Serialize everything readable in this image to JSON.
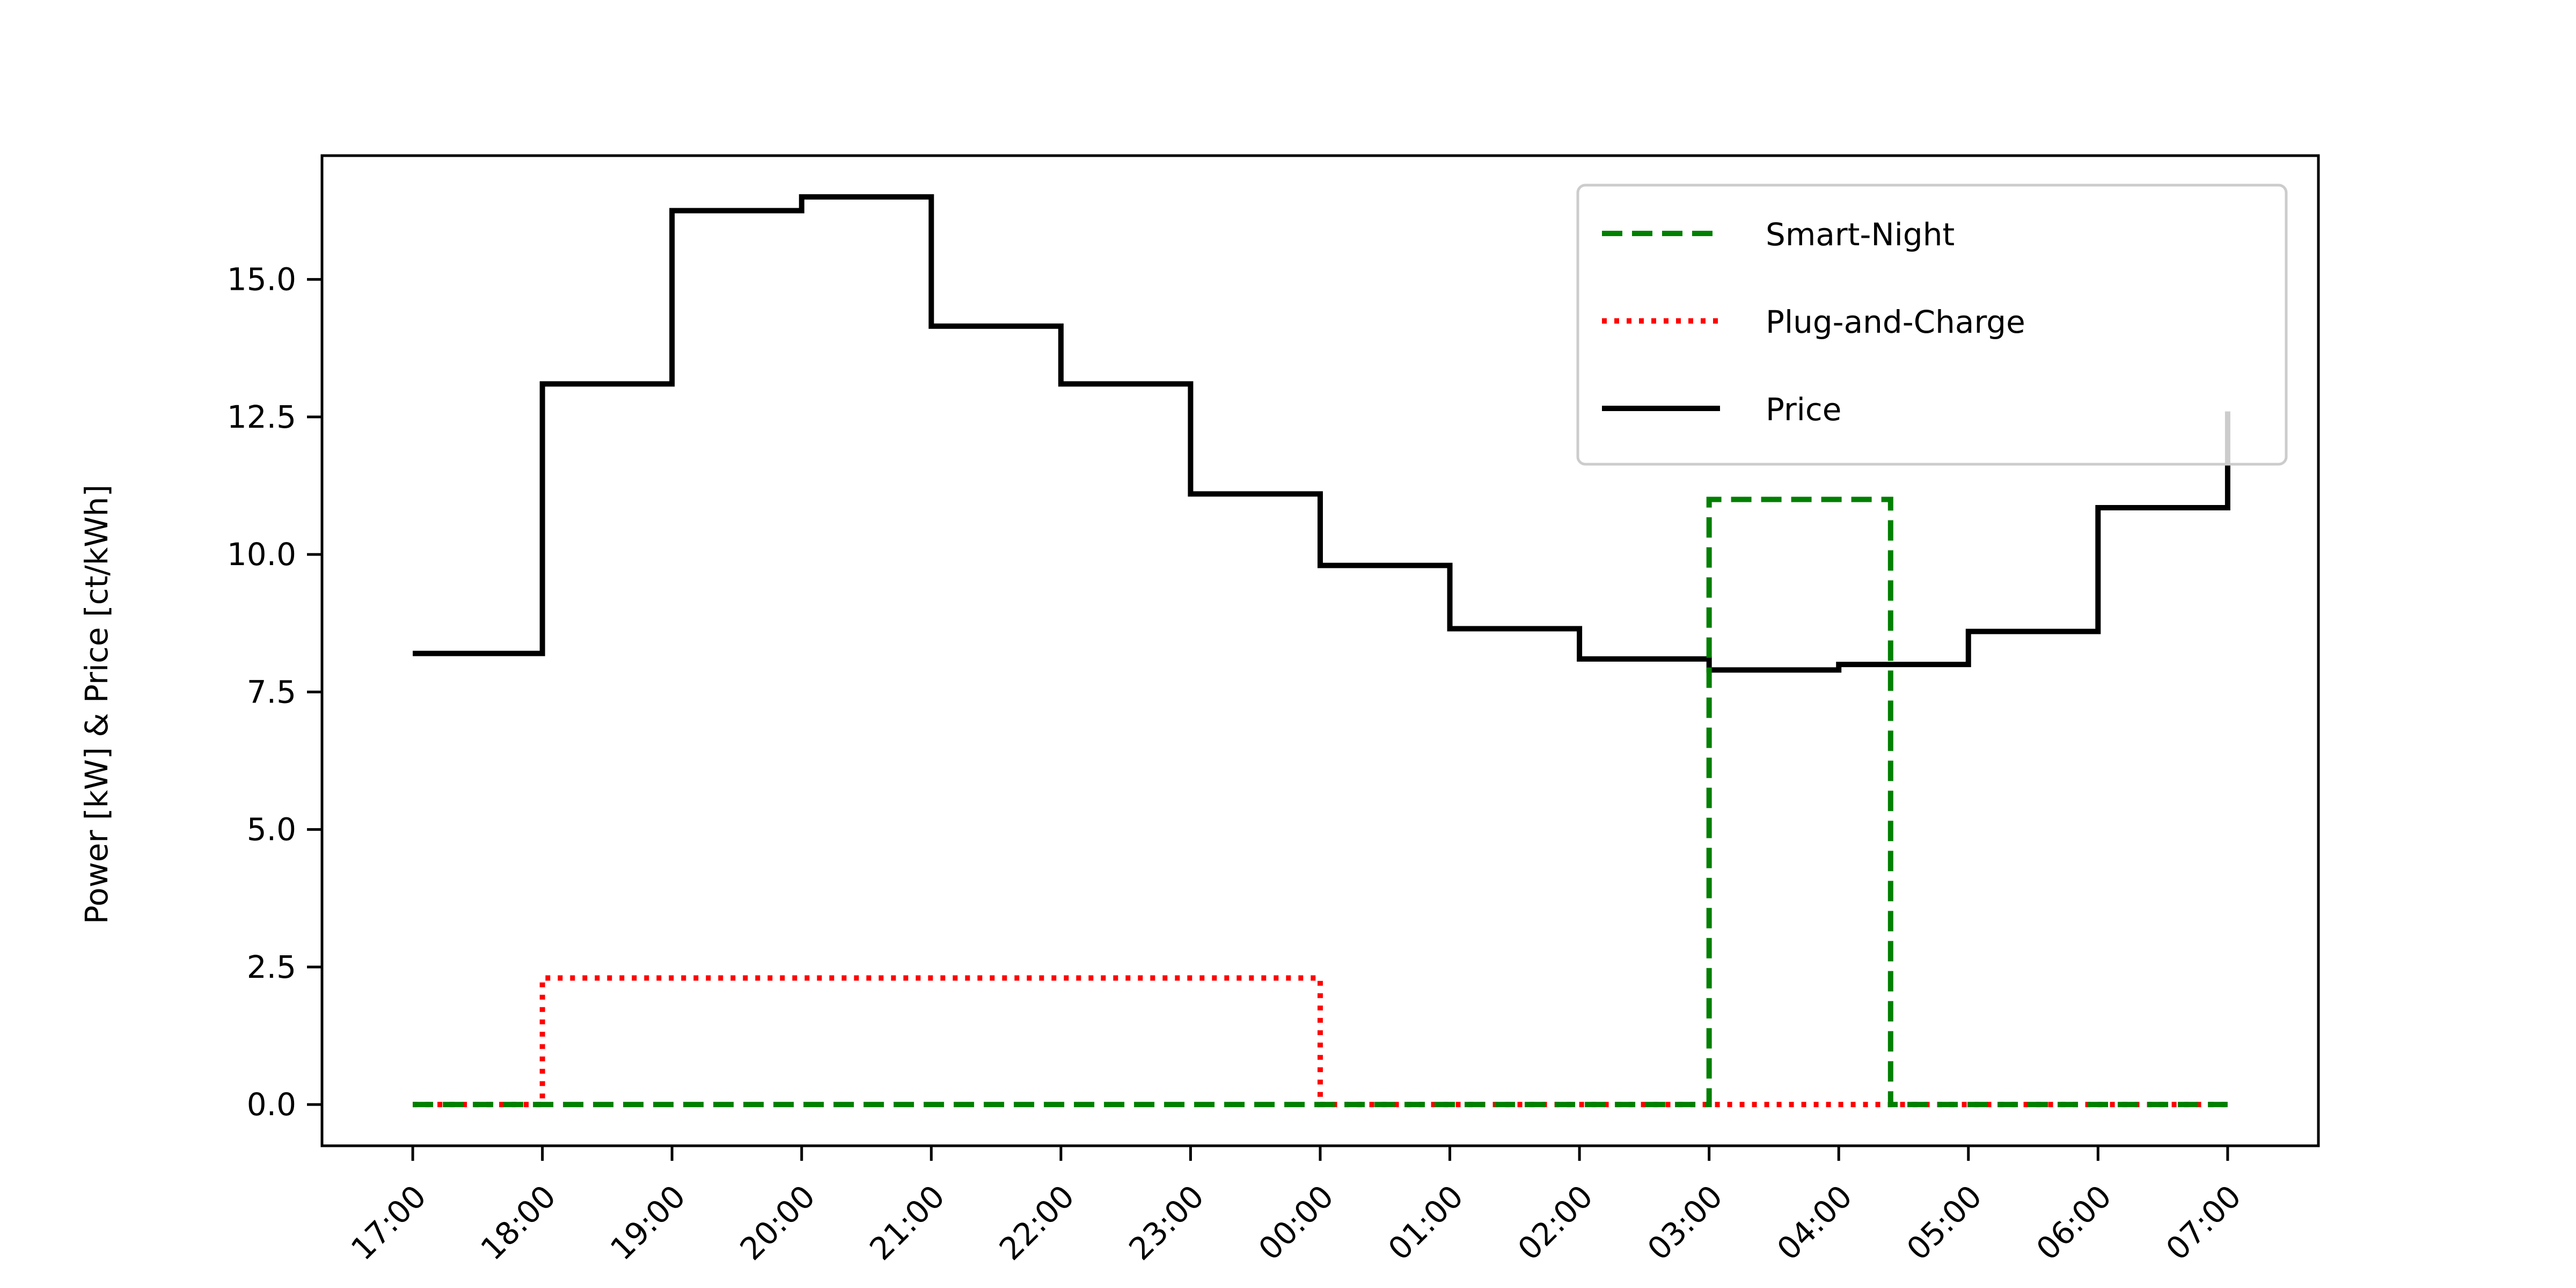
{
  "chart_data": {
    "type": "line",
    "title": "",
    "xlabel": "",
    "ylabel": "Power [kW] & Price [ct/kWh]",
    "ylim": [
      -0.75,
      17.25
    ],
    "y_ticks": [
      "0.0",
      "2.5",
      "5.0",
      "7.5",
      "10.0",
      "12.5",
      "15.0"
    ],
    "y_tick_values": [
      0,
      2.5,
      5.0,
      7.5,
      10.0,
      12.5,
      15.0
    ],
    "categories": [
      "17:00",
      "18:00",
      "19:00",
      "20:00",
      "21:00",
      "22:00",
      "23:00",
      "00:00",
      "01:00",
      "02:00",
      "03:00",
      "04:00",
      "05:00",
      "06:00",
      "07:00"
    ],
    "x_hours": [
      0,
      14.0
    ],
    "xlim": [
      -0.7,
      14.7
    ],
    "grid": false,
    "legend_position": "top-right",
    "series": [
      {
        "name": "Smart-Night",
        "color": "#008000",
        "style": "dashed",
        "step_x": [
          0,
          10.0,
          10.0,
          11.4,
          11.4,
          14.0
        ],
        "step_y": [
          0,
          0,
          11.0,
          11.0,
          0,
          0
        ]
      },
      {
        "name": "Plug-and-Charge",
        "color": "#ff0000",
        "style": "dotted",
        "step_x": [
          0,
          1.0,
          1.0,
          7.0,
          7.0,
          14.0
        ],
        "step_y": [
          0,
          0,
          2.3,
          2.3,
          0,
          0
        ]
      },
      {
        "name": "Price",
        "color": "#000000",
        "style": "solid",
        "step_x": [
          0,
          1.0,
          1.0,
          2.0,
          2.0,
          3.0,
          3.0,
          3.0,
          4.0,
          4.0,
          5.0,
          5.0,
          6.0,
          6.0,
          7.0,
          7.0,
          8.0,
          8.0,
          9.0,
          9.0,
          10.0,
          10.0,
          11.0,
          11.0,
          12.0,
          12.0,
          13.0,
          13.0,
          14.0,
          14.0
        ],
        "step_y": [
          8.2,
          8.2,
          13.1,
          13.1,
          16.25,
          16.25,
          16.25,
          16.5,
          16.5,
          14.15,
          14.15,
          13.1,
          13.1,
          11.1,
          11.1,
          9.8,
          9.8,
          8.65,
          8.65,
          8.1,
          8.1,
          7.9,
          7.9,
          8.0,
          8.0,
          8.6,
          8.6,
          10.85,
          10.85,
          12.6
        ]
      }
    ]
  }
}
